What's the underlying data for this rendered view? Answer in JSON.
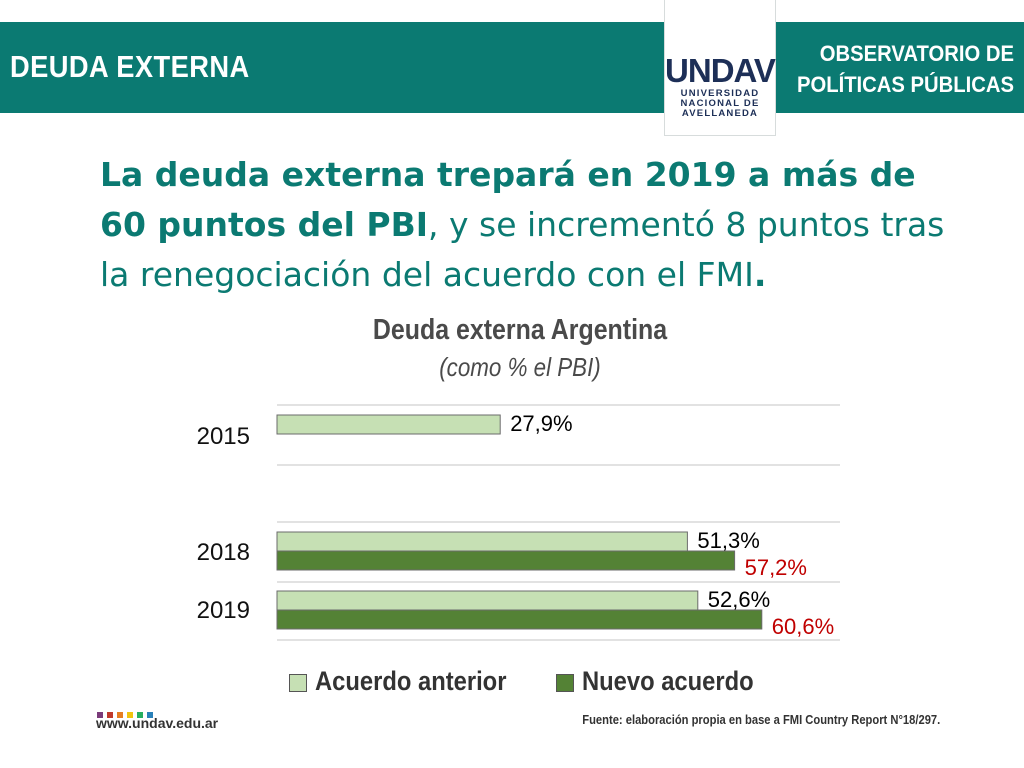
{
  "header": {
    "section_title": "DEUDA EXTERNA",
    "right_line1": "OBSERVATORIO DE",
    "right_line2": "POLÍTICAS PÚBLICAS",
    "brand_color": "#0b7a72"
  },
  "logo": {
    "word": "UNDAV",
    "line1": "UNIVERSIDAD",
    "line2": "NACIONAL DE",
    "line3": "AVELLANEDA"
  },
  "headline": {
    "bold1": "La deuda externa trepará en 2019 a más de 60 puntos del PBI",
    "normal": ", y se incrementó 8 puntos tras la renegociación del acuerdo con el FMI",
    "bold2": "."
  },
  "chart_data": {
    "type": "bar",
    "orientation": "horizontal",
    "title": "Deuda externa Argentina",
    "subtitle": "(como % el PBI)",
    "categories": [
      "2015",
      "2018",
      "2019"
    ],
    "series": [
      {
        "name": "Acuerdo anterior",
        "color": "#c6e0b4",
        "values": [
          27.9,
          51.3,
          52.6
        ],
        "labels": [
          "27,9%",
          "51,3%",
          "52,6%"
        ],
        "label_color": "#000000"
      },
      {
        "name": "Nuevo acuerdo",
        "color": "#548235",
        "values": [
          null,
          57.2,
          60.6
        ],
        "labels": [
          null,
          "57,2%",
          "60,6%"
        ],
        "label_color": "#c00000"
      }
    ],
    "xlim": [
      0,
      72
    ],
    "grid": true,
    "legend": "bottom"
  },
  "footer": {
    "url": "www.undav.edu.ar",
    "source": "Fuente: elaboración propia en base a FMI Country Report N°18/297.",
    "dot_colors": [
      "#7a3b7a",
      "#c0392b",
      "#e67e22",
      "#f1c40f",
      "#27ae60",
      "#2980b9"
    ]
  }
}
